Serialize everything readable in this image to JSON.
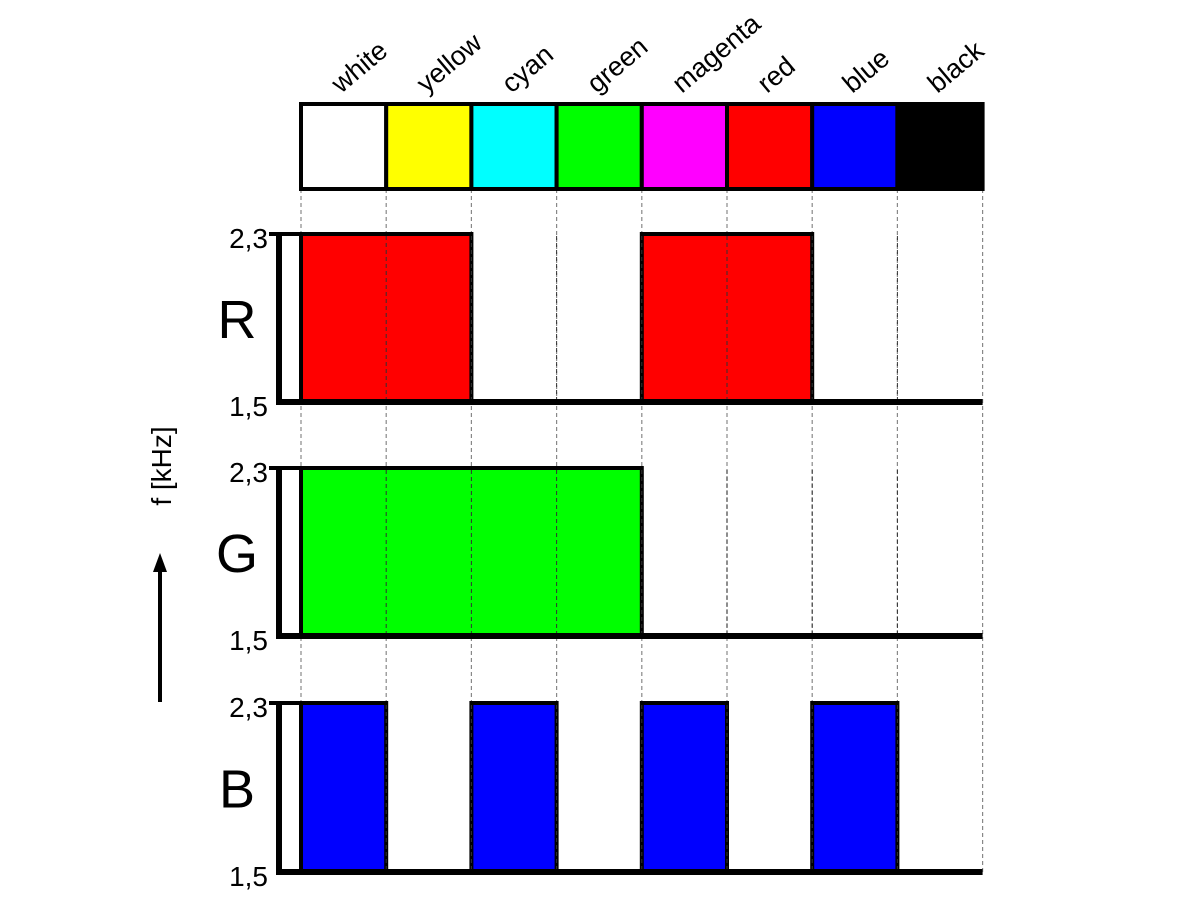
{
  "bar_colors": [
    {
      "name": "white",
      "hex": "#ffffff"
    },
    {
      "name": "yellow",
      "hex": "#ffff00"
    },
    {
      "name": "cyan",
      "hex": "#00ffff"
    },
    {
      "name": "green",
      "hex": "#00ff00"
    },
    {
      "name": "magenta",
      "hex": "#ff00ff"
    },
    {
      "name": "red",
      "hex": "#ff0000"
    },
    {
      "name": "blue",
      "hex": "#0000ff"
    },
    {
      "name": "black",
      "hex": "#000000"
    }
  ],
  "axis_label": "f [kHz]",
  "tick_high": "2,3",
  "tick_low": "1,5",
  "channels": [
    {
      "letter": "R",
      "color": "#ff0000",
      "levels": [
        1,
        1,
        0,
        0,
        1,
        1,
        0,
        0
      ]
    },
    {
      "letter": "G",
      "color": "#00ff00",
      "levels": [
        1,
        1,
        1,
        1,
        0,
        0,
        0,
        0
      ]
    },
    {
      "letter": "B",
      "color": "#0000ff",
      "levels": [
        1,
        0,
        1,
        0,
        1,
        0,
        1,
        0
      ]
    }
  ]
}
